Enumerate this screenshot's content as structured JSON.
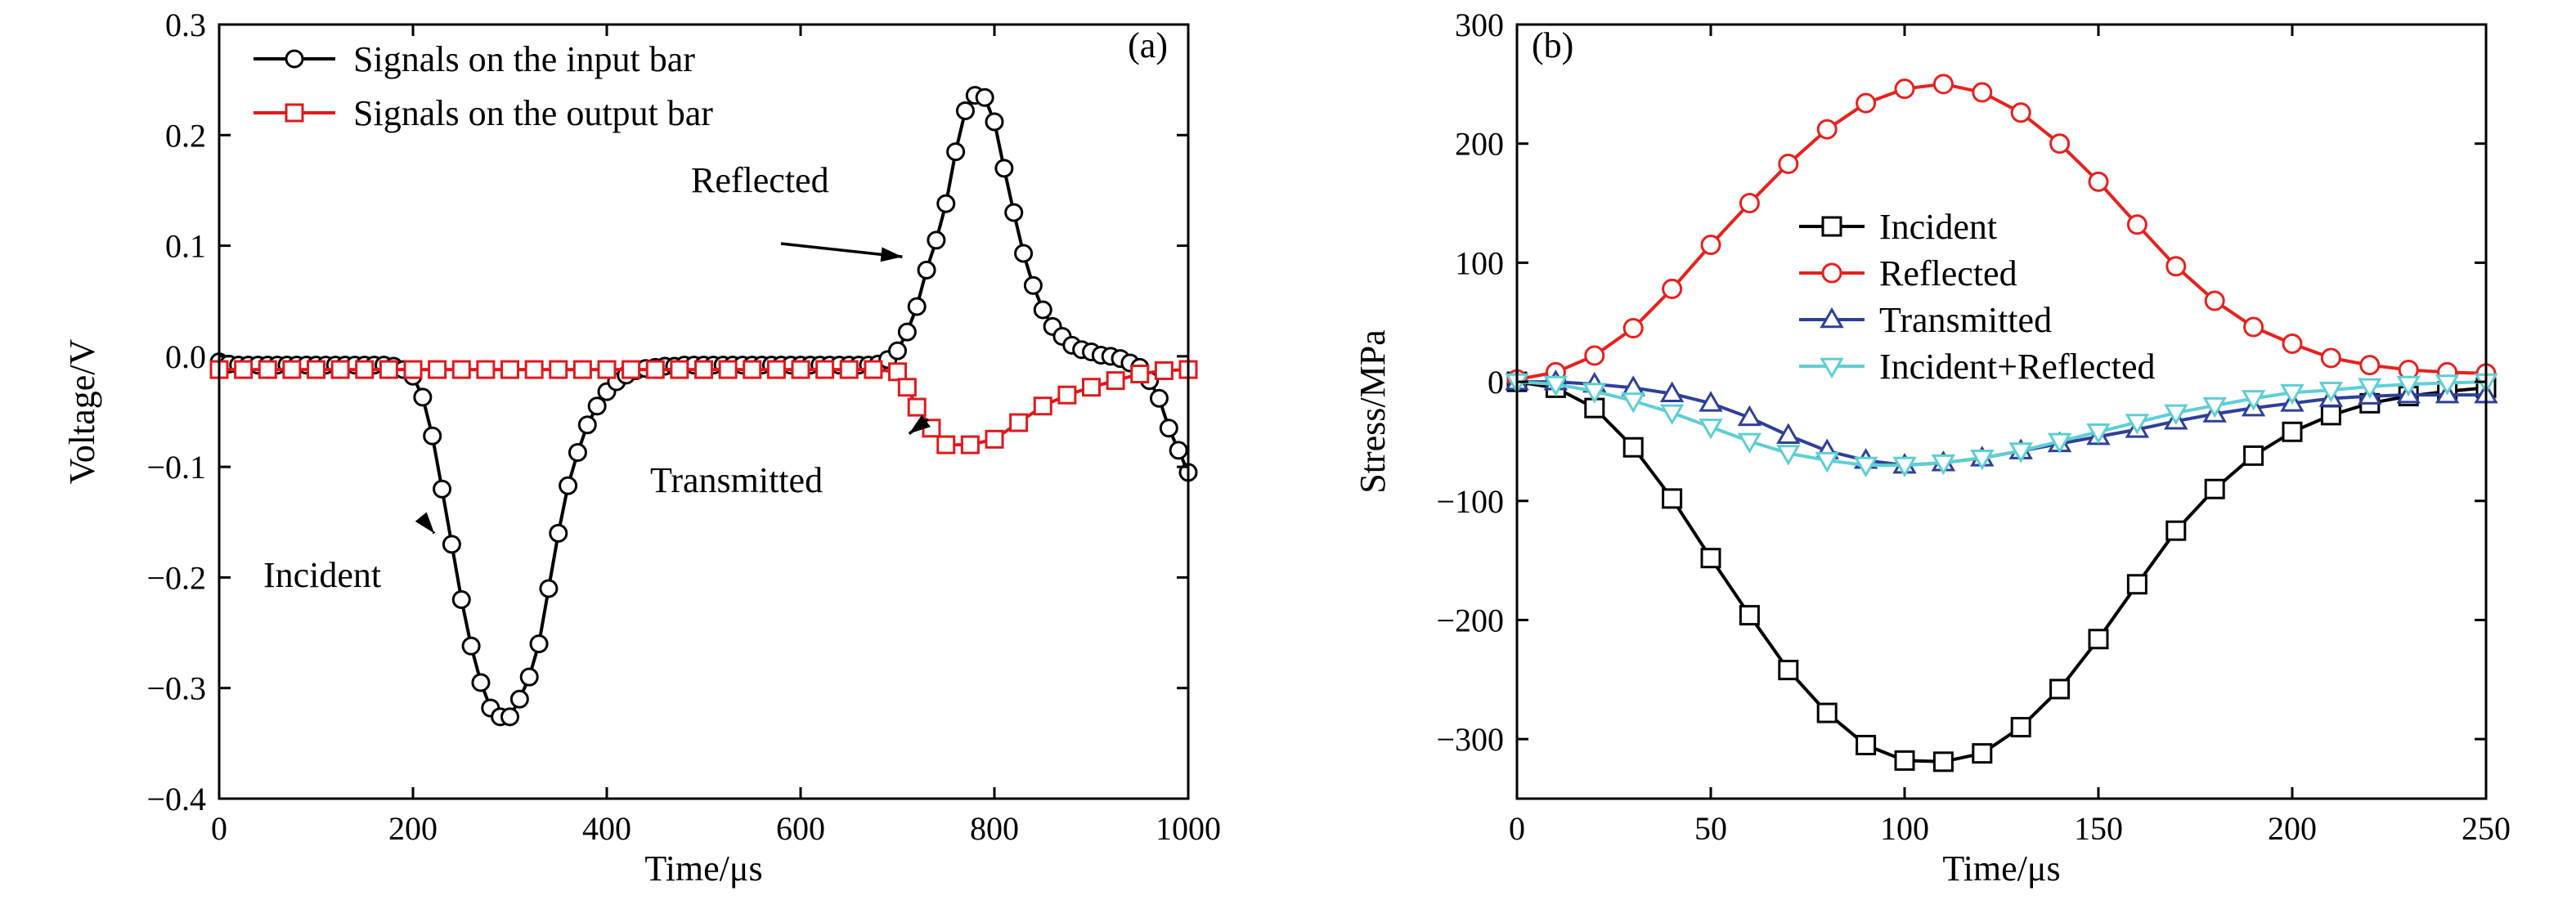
{
  "chart_data": [
    {
      "type": "line",
      "panel_label": "(a)",
      "xlabel": "Time/μs",
      "ylabel": "Voltage/V",
      "xlim": [
        0,
        1000
      ],
      "ylim": [
        -0.4,
        0.3
      ],
      "xticks": [
        0,
        200,
        400,
        600,
        800,
        1000
      ],
      "xtick_labels": [
        "0",
        "200",
        "400",
        "600",
        "800",
        "1000"
      ],
      "yticks": [
        -0.4,
        -0.3,
        -0.2,
        -0.1,
        0.0,
        0.1,
        0.2,
        0.3
      ],
      "ytick_labels": [
        "−0.4",
        "−0.3",
        "−0.2",
        "−0.1",
        "0.0",
        "0.1",
        "0.2",
        "0.3"
      ],
      "legend_position": "top-left",
      "series": [
        {
          "name": "Signals on the input bar",
          "color": "#000000",
          "marker": "circle",
          "x": [
            0,
            10,
            20,
            30,
            40,
            50,
            60,
            70,
            80,
            90,
            100,
            110,
            120,
            130,
            140,
            150,
            160,
            170,
            180,
            190,
            200,
            210,
            220,
            230,
            240,
            250,
            260,
            270,
            280,
            290,
            300,
            310,
            320,
            330,
            340,
            350,
            360,
            370,
            380,
            390,
            400,
            410,
            420,
            430,
            440,
            450,
            460,
            470,
            480,
            490,
            500,
            510,
            520,
            530,
            540,
            550,
            560,
            570,
            580,
            590,
            600,
            610,
            620,
            630,
            640,
            650,
            660,
            670,
            680,
            690,
            700,
            710,
            720,
            730,
            740,
            750,
            760,
            770,
            780,
            790,
            800,
            810,
            820,
            830,
            840,
            850,
            860,
            870,
            880,
            890,
            900,
            910,
            920,
            930,
            940,
            950,
            960,
            970,
            980,
            990,
            1000
          ],
          "y": [
            -0.005,
            -0.007,
            -0.008,
            -0.008,
            -0.008,
            -0.008,
            -0.008,
            -0.008,
            -0.008,
            -0.008,
            -0.008,
            -0.008,
            -0.008,
            -0.008,
            -0.008,
            -0.008,
            -0.008,
            -0.008,
            -0.009,
            -0.012,
            -0.018,
            -0.037,
            -0.072,
            -0.12,
            -0.17,
            -0.22,
            -0.262,
            -0.295,
            -0.318,
            -0.326,
            -0.326,
            -0.31,
            -0.29,
            -0.26,
            -0.21,
            -0.16,
            -0.117,
            -0.087,
            -0.062,
            -0.045,
            -0.032,
            -0.023,
            -0.017,
            -0.013,
            -0.011,
            -0.01,
            -0.009,
            -0.009,
            -0.008,
            -0.008,
            -0.008,
            -0.008,
            -0.008,
            -0.008,
            -0.008,
            -0.008,
            -0.008,
            -0.008,
            -0.008,
            -0.008,
            -0.008,
            -0.008,
            -0.008,
            -0.008,
            -0.008,
            -0.008,
            -0.008,
            -0.008,
            -0.007,
            -0.003,
            0.005,
            0.022,
            0.045,
            0.078,
            0.105,
            0.138,
            0.185,
            0.222,
            0.236,
            0.234,
            0.212,
            0.17,
            0.13,
            0.093,
            0.064,
            0.042,
            0.027,
            0.018,
            0.01,
            0.006,
            0.004,
            0.001,
            0.0,
            -0.002,
            -0.006,
            -0.01,
            -0.022,
            -0.038,
            -0.065,
            -0.085,
            -0.105
          ]
        },
        {
          "name": "Signals on the output bar",
          "color": "#e0191c",
          "marker": "square",
          "x": [
            0,
            25,
            50,
            75,
            100,
            125,
            150,
            175,
            200,
            225,
            250,
            275,
            300,
            325,
            350,
            375,
            400,
            425,
            450,
            475,
            500,
            525,
            550,
            575,
            600,
            625,
            650,
            675,
            700,
            710,
            720,
            735,
            750,
            775,
            800,
            825,
            850,
            875,
            900,
            925,
            950,
            975,
            1000
          ],
          "y": [
            -0.012,
            -0.012,
            -0.012,
            -0.012,
            -0.012,
            -0.012,
            -0.012,
            -0.012,
            -0.012,
            -0.012,
            -0.012,
            -0.012,
            -0.012,
            -0.012,
            -0.012,
            -0.012,
            -0.012,
            -0.012,
            -0.012,
            -0.012,
            -0.012,
            -0.012,
            -0.012,
            -0.012,
            -0.012,
            -0.012,
            -0.012,
            -0.012,
            -0.014,
            -0.028,
            -0.046,
            -0.065,
            -0.08,
            -0.08,
            -0.075,
            -0.06,
            -0.045,
            -0.035,
            -0.028,
            -0.022,
            -0.016,
            -0.013,
            -0.012
          ]
        }
      ],
      "annotations": [
        {
          "text": "Reflected",
          "arrow_to": [
            705,
            0.09
          ]
        },
        {
          "text": "Transmitted",
          "arrow_to": [
            712,
            -0.07
          ]
        },
        {
          "text": "Incident",
          "arrow_to": [
            222,
            -0.16
          ]
        }
      ]
    },
    {
      "type": "line",
      "panel_label": "(b)",
      "xlabel": "Time/μs",
      "ylabel": "Stress/MPa",
      "xlim": [
        0,
        250
      ],
      "ylim": [
        -350,
        300
      ],
      "xticks": [
        0,
        50,
        100,
        150,
        200,
        250
      ],
      "xtick_labels": [
        "0",
        "50",
        "100",
        "150",
        "200",
        "250"
      ],
      "yticks": [
        -300,
        -200,
        -100,
        0,
        100,
        200,
        300
      ],
      "ytick_labels": [
        "−300",
        "−200",
        "−100",
        "0",
        "100",
        "200",
        "300"
      ],
      "legend_position": "center",
      "series": [
        {
          "name": "Incident",
          "color": "#000000",
          "marker": "square",
          "x": [
            0,
            10,
            20,
            30,
            40,
            50,
            60,
            70,
            80,
            90,
            100,
            110,
            120,
            130,
            140,
            150,
            160,
            170,
            180,
            190,
            200,
            210,
            220,
            230,
            240,
            250
          ],
          "y": [
            0,
            -5,
            -22,
            -55,
            -98,
            -148,
            -196,
            -242,
            -278,
            -305,
            -318,
            -319,
            -312,
            -290,
            -258,
            -216,
            -170,
            -125,
            -90,
            -62,
            -42,
            -28,
            -18,
            -12,
            -8,
            -5
          ]
        },
        {
          "name": "Reflected",
          "color": "#e8211d",
          "marker": "circle",
          "x": [
            0,
            10,
            20,
            30,
            40,
            50,
            60,
            70,
            80,
            90,
            100,
            110,
            120,
            130,
            140,
            150,
            160,
            170,
            180,
            190,
            200,
            210,
            220,
            230,
            240,
            250
          ],
          "y": [
            2,
            8,
            22,
            45,
            78,
            115,
            150,
            183,
            212,
            234,
            246,
            250,
            243,
            226,
            200,
            168,
            132,
            97,
            68,
            46,
            32,
            20,
            14,
            10,
            8,
            7
          ]
        },
        {
          "name": "Transmitted",
          "color": "#2e3f9a",
          "marker": "triangle-up",
          "x": [
            0,
            10,
            20,
            30,
            40,
            50,
            60,
            70,
            80,
            90,
            100,
            110,
            120,
            130,
            140,
            150,
            160,
            170,
            180,
            190,
            200,
            210,
            220,
            230,
            240,
            250
          ],
          "y": [
            0,
            0,
            -2,
            -5,
            -10,
            -18,
            -30,
            -45,
            -58,
            -66,
            -70,
            -68,
            -64,
            -58,
            -52,
            -46,
            -40,
            -33,
            -27,
            -22,
            -18,
            -14,
            -12,
            -11,
            -11,
            -11
          ]
        },
        {
          "name": "Incident+Reflected",
          "color": "#5ecfd4",
          "marker": "triangle-down",
          "x": [
            0,
            10,
            20,
            30,
            40,
            50,
            60,
            70,
            80,
            90,
            100,
            110,
            120,
            130,
            140,
            150,
            160,
            170,
            180,
            190,
            200,
            210,
            220,
            230,
            240,
            250
          ],
          "y": [
            0,
            -2,
            -8,
            -16,
            -26,
            -38,
            -50,
            -60,
            -66,
            -70,
            -70,
            -68,
            -64,
            -58,
            -50,
            -42,
            -34,
            -26,
            -20,
            -14,
            -9,
            -7,
            -4,
            -2,
            -1,
            0
          ]
        }
      ]
    }
  ]
}
